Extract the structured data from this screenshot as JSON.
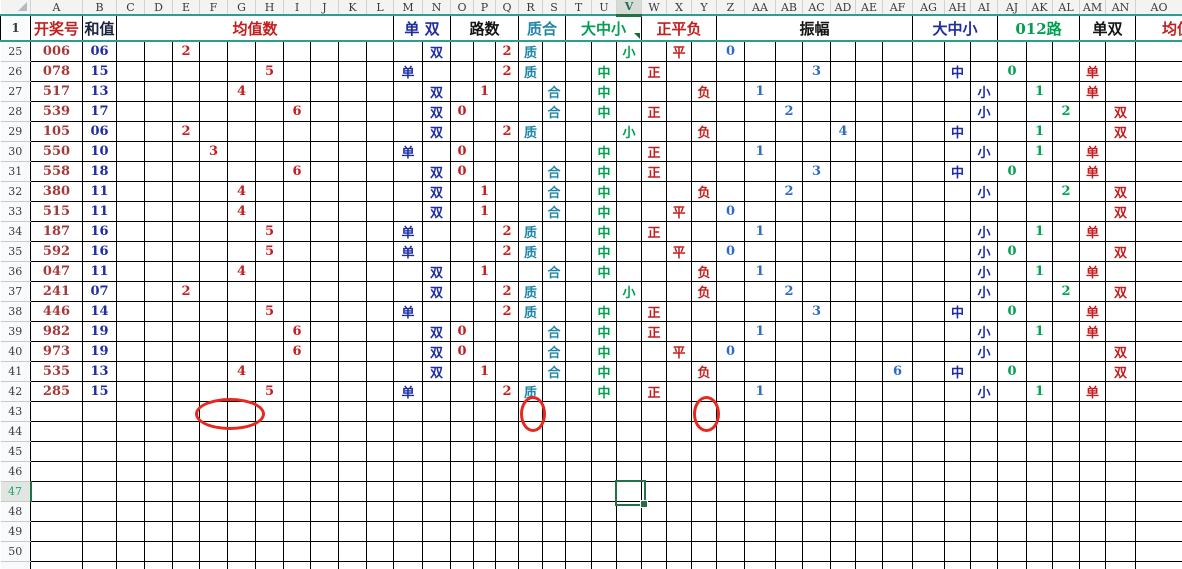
{
  "sheet": {
    "colors": {
      "accent_green": "#217346",
      "frozen_line_teal": "#2aa08c",
      "annotation_red": "#e8281e",
      "grid_black": "#000000",
      "red": "#c41e1e",
      "a_red": "#a23a3a",
      "navy": "#1f2da0",
      "teal": "#2286a8",
      "green": "#00a050",
      "blue": "#2f6bc4",
      "black": "#141414",
      "ink": "#1c2340"
    },
    "column_ids": [
      "A",
      "B",
      "C",
      "D",
      "E",
      "F",
      "G",
      "H",
      "I",
      "J",
      "K",
      "L",
      "M",
      "N",
      "O",
      "P",
      "Q",
      "R",
      "S",
      "T",
      "U",
      "V",
      "W",
      "X",
      "Y",
      "Z",
      "AA",
      "AB",
      "AC",
      "AD",
      "AE",
      "AF",
      "AG",
      "AH",
      "AI",
      "AJ",
      "AK",
      "AL",
      "AM",
      "AN",
      "AO"
    ],
    "header_row_number": "1",
    "groups": [
      {
        "label": "开奖号",
        "cols": [
          "A"
        ],
        "label_color": "red",
        "value_color": "a_red"
      },
      {
        "label": "和值",
        "cols": [
          "B"
        ],
        "label_color": "ink",
        "value_color": "navy"
      },
      {
        "label": "均值数",
        "cols": [
          "C",
          "D",
          "E",
          "F",
          "G",
          "H",
          "I",
          "J",
          "K",
          "L"
        ],
        "label_color": "red",
        "value_color": "red"
      },
      {
        "label": "单 双",
        "cols": [
          "M",
          "N"
        ],
        "label_color": "navy",
        "value_color": "navy"
      },
      {
        "label": "路数",
        "cols": [
          "O",
          "P",
          "Q"
        ],
        "label_color": "black",
        "value_color": "red"
      },
      {
        "label": "质合",
        "cols": [
          "R",
          "S"
        ],
        "label_color": "teal",
        "value_color": "teal"
      },
      {
        "label": "大中小",
        "cols": [
          "T",
          "U",
          "V"
        ],
        "label_color": "green",
        "value_color": "green"
      },
      {
        "label": "正平负",
        "cols": [
          "W",
          "X",
          "Y"
        ],
        "label_color": "red",
        "value_color": "red"
      },
      {
        "label": "振幅",
        "cols": [
          "Z",
          "AA",
          "AB",
          "AC",
          "AD",
          "AE",
          "AF"
        ],
        "label_color": "black",
        "value_color": "blue"
      },
      {
        "label": "大中小",
        "cols": [
          "AG",
          "AH",
          "AI"
        ],
        "label_color": "navy",
        "value_color": "navy"
      },
      {
        "label": "012路",
        "cols": [
          "AJ",
          "AK",
          "AL"
        ],
        "label_color": "green",
        "value_color": "green"
      },
      {
        "label": "单双",
        "cols": [
          "AM",
          "AN"
        ],
        "label_color": "black",
        "value_color": "red"
      },
      {
        "label": "均值数",
        "cols": [
          "AO"
        ],
        "label_color": "red",
        "value_color": "red",
        "clipped": true
      }
    ],
    "rows": [
      {
        "n": "25",
        "cells": {
          "A": "006",
          "B": "06",
          "E": "2",
          "N": "双",
          "Q": "2",
          "R": "质",
          "V": "小",
          "X": "平",
          "Z": "0"
        }
      },
      {
        "n": "26",
        "cells": {
          "A": "078",
          "B": "15",
          "H": "5",
          "M": "单",
          "Q": "2",
          "R": "质",
          "U": "中",
          "W": "正",
          "AC": "3",
          "AH": "中",
          "AJ": "0",
          "AM": "单"
        }
      },
      {
        "n": "27",
        "cells": {
          "A": "517",
          "B": "13",
          "G": "4",
          "N": "双",
          "P": "1",
          "S": "合",
          "U": "中",
          "Y": "负",
          "AA": "1",
          "AI": "小",
          "AK": "1",
          "AM": "单"
        }
      },
      {
        "n": "28",
        "cells": {
          "A": "539",
          "B": "17",
          "I": "6",
          "N": "双",
          "O": "0",
          "S": "合",
          "U": "中",
          "W": "正",
          "AB": "2",
          "AI": "小",
          "AL": "2",
          "AN": "双"
        }
      },
      {
        "n": "29",
        "cells": {
          "A": "105",
          "B": "06",
          "E": "2",
          "N": "双",
          "Q": "2",
          "R": "质",
          "V": "小",
          "Y": "负",
          "AD": "4",
          "AH": "中",
          "AK": "1",
          "AN": "双"
        }
      },
      {
        "n": "30",
        "cells": {
          "A": "550",
          "B": "10",
          "F": "3",
          "M": "单",
          "O": "0",
          "U": "中",
          "W": "正",
          "AA": "1",
          "AI": "小",
          "AK": "1",
          "AM": "单"
        }
      },
      {
        "n": "31",
        "cells": {
          "A": "558",
          "B": "18",
          "I": "6",
          "N": "双",
          "O": "0",
          "S": "合",
          "U": "中",
          "W": "正",
          "AC": "3",
          "AH": "中",
          "AJ": "0",
          "AM": "单"
        }
      },
      {
        "n": "32",
        "cells": {
          "A": "380",
          "B": "11",
          "G": "4",
          "N": "双",
          "P": "1",
          "S": "合",
          "U": "中",
          "Y": "负",
          "AB": "2",
          "AI": "小",
          "AL": "2",
          "AN": "双"
        }
      },
      {
        "n": "33",
        "cells": {
          "A": "515",
          "B": "11",
          "G": "4",
          "N": "双",
          "P": "1",
          "S": "合",
          "U": "中",
          "X": "平",
          "Z": "0",
          "AN": "双"
        }
      },
      {
        "n": "34",
        "cells": {
          "A": "187",
          "B": "16",
          "H": "5",
          "M": "单",
          "Q": "2",
          "R": "质",
          "U": "中",
          "W": "正",
          "AA": "1",
          "AI": "小",
          "AK": "1",
          "AM": "单"
        }
      },
      {
        "n": "35",
        "cells": {
          "A": "592",
          "B": "16",
          "H": "5",
          "M": "单",
          "Q": "2",
          "R": "质",
          "U": "中",
          "X": "平",
          "Z": "0",
          "AI": "小",
          "AJ": "0",
          "AN": "双"
        }
      },
      {
        "n": "36",
        "cells": {
          "A": "047",
          "B": "11",
          "G": "4",
          "N": "双",
          "P": "1",
          "S": "合",
          "U": "中",
          "Y": "负",
          "AA": "1",
          "AI": "小",
          "AK": "1",
          "AM": "单"
        }
      },
      {
        "n": "37",
        "cells": {
          "A": "241",
          "B": "07",
          "E": "2",
          "N": "双",
          "Q": "2",
          "R": "质",
          "V": "小",
          "Y": "负",
          "AB": "2",
          "AI": "小",
          "AL": "2",
          "AN": "双"
        }
      },
      {
        "n": "38",
        "cells": {
          "A": "446",
          "B": "14",
          "H": "5",
          "M": "单",
          "Q": "2",
          "R": "质",
          "U": "中",
          "W": "正",
          "AC": "3",
          "AH": "中",
          "AJ": "0",
          "AM": "单"
        }
      },
      {
        "n": "39",
        "cells": {
          "A": "982",
          "B": "19",
          "I": "6",
          "N": "双",
          "O": "0",
          "S": "合",
          "U": "中",
          "W": "正",
          "AA": "1",
          "AI": "小",
          "AK": "1",
          "AM": "单"
        }
      },
      {
        "n": "40",
        "cells": {
          "A": "973",
          "B": "19",
          "I": "6",
          "N": "双",
          "O": "0",
          "S": "合",
          "U": "中",
          "X": "平",
          "Z": "0",
          "AI": "小",
          "AN": "双"
        }
      },
      {
        "n": "41",
        "cells": {
          "A": "535",
          "B": "13",
          "G": "4",
          "N": "双",
          "P": "1",
          "S": "合",
          "U": "中",
          "Y": "负",
          "AF": "6",
          "AH": "中",
          "AJ": "0",
          "AN": "双"
        }
      },
      {
        "n": "42",
        "cells": {
          "A": "285",
          "B": "15",
          "H": "5",
          "M": "单",
          "Q": "2",
          "R": "质",
          "U": "中",
          "W": "正",
          "AA": "1",
          "AI": "小",
          "AK": "1",
          "AM": "单"
        }
      },
      {
        "n": "43",
        "cells": {}
      },
      {
        "n": "44",
        "cells": {}
      },
      {
        "n": "45",
        "cells": {}
      },
      {
        "n": "46",
        "cells": {}
      },
      {
        "n": "47",
        "cells": {}
      },
      {
        "n": "48",
        "cells": {}
      },
      {
        "n": "49",
        "cells": {}
      },
      {
        "n": "50",
        "cells": {}
      }
    ],
    "selection": {
      "cell": "V47",
      "column": "V",
      "row": "47"
    },
    "annotations": [
      {
        "name": "red-ellipse-1",
        "row": "43",
        "cols": [
          "F",
          "G"
        ]
      },
      {
        "name": "red-ellipse-2",
        "row": "43",
        "cols": [
          "R"
        ]
      },
      {
        "name": "red-ellipse-3",
        "row": "43",
        "cols": [
          "Y"
        ]
      }
    ]
  }
}
